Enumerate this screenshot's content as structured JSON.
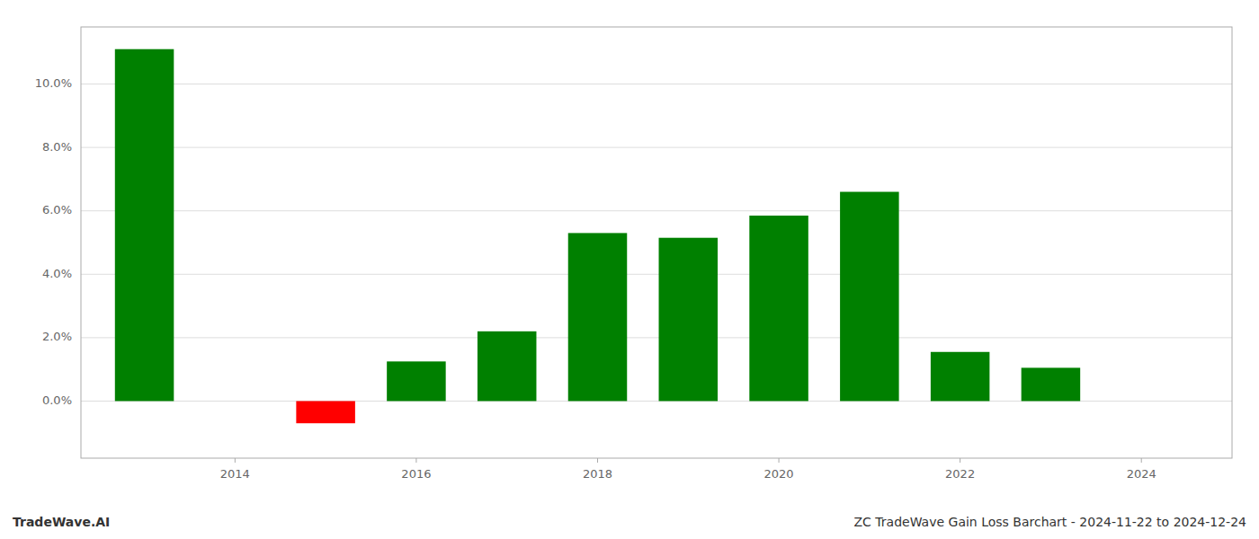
{
  "chart_data": {
    "type": "bar",
    "title": "ZC TradeWave Gain Loss Barchart - 2024-11-22 to 2024-12-24",
    "annotations": [
      "TradeWave.AI"
    ],
    "x": [
      2013,
      2015,
      2016,
      2017,
      2018,
      2019,
      2020,
      2021,
      2022,
      2023
    ],
    "values": [
      0.111,
      -0.007,
      0.0125,
      0.022,
      0.053,
      0.0515,
      0.0585,
      0.066,
      0.0155,
      0.0105
    ],
    "colors": [
      "#008000",
      "#ff0000",
      "#008000",
      "#008000",
      "#008000",
      "#008000",
      "#008000",
      "#008000",
      "#008000",
      "#008000"
    ],
    "xlim": [
      2012.3,
      2025.0
    ],
    "xticks": [
      2014,
      2016,
      2018,
      2020,
      2022,
      2024
    ],
    "ylim": [
      -0.018,
      0.118
    ],
    "yticks": [
      {
        "value": 0.0,
        "label": "0.0%"
      },
      {
        "value": 0.02,
        "label": "2.0%"
      },
      {
        "value": 0.04,
        "label": "4.0%"
      },
      {
        "value": 0.06,
        "label": "6.0%"
      },
      {
        "value": 0.08,
        "label": "8.0%"
      },
      {
        "value": 0.1,
        "label": "10.0%"
      }
    ],
    "grid": true
  }
}
